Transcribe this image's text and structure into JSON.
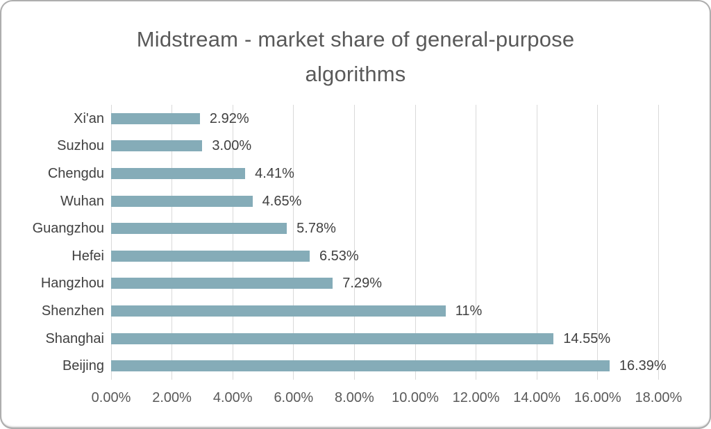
{
  "card": {
    "background": "#ffffff",
    "border_color": "#aeaeae"
  },
  "title_lines": [
    "Midstream - market share of general-purpose",
    "algorithms"
  ],
  "chart_data": {
    "type": "bar",
    "orientation": "horizontal",
    "title": "Midstream - market share of general-purpose algorithms",
    "order": "top-to-bottom",
    "categories": [
      "Xi'an",
      "Suzhou",
      "Chengdu",
      "Wuhan",
      "Guangzhou",
      "Hefei",
      "Hangzhou",
      "Shenzhen",
      "Shanghai",
      "Beijing"
    ],
    "values": [
      2.92,
      3.0,
      4.41,
      4.65,
      5.78,
      6.53,
      7.29,
      11,
      14.55,
      16.39
    ],
    "data_labels": [
      "2.92%",
      "3.00%",
      "4.41%",
      "4.65%",
      "5.78%",
      "6.53%",
      "7.29%",
      "11%",
      "14.55%",
      "16.39%"
    ],
    "xlabel": "",
    "ylabel": "",
    "x_axis": {
      "min": 0,
      "max": 18,
      "step": 2,
      "unit": "%",
      "tick_labels": [
        "0.00%",
        "2.00%",
        "4.00%",
        "6.00%",
        "8.00%",
        "10.00%",
        "12.00%",
        "14.00%",
        "16.00%",
        "18.00%"
      ]
    },
    "grid": true,
    "legend": false,
    "bar_color": "#85acb8",
    "gridline_color": "#d9d9d9",
    "title_color": "#595959",
    "axis_label_color": "#595959",
    "data_label_color": "#404040"
  }
}
